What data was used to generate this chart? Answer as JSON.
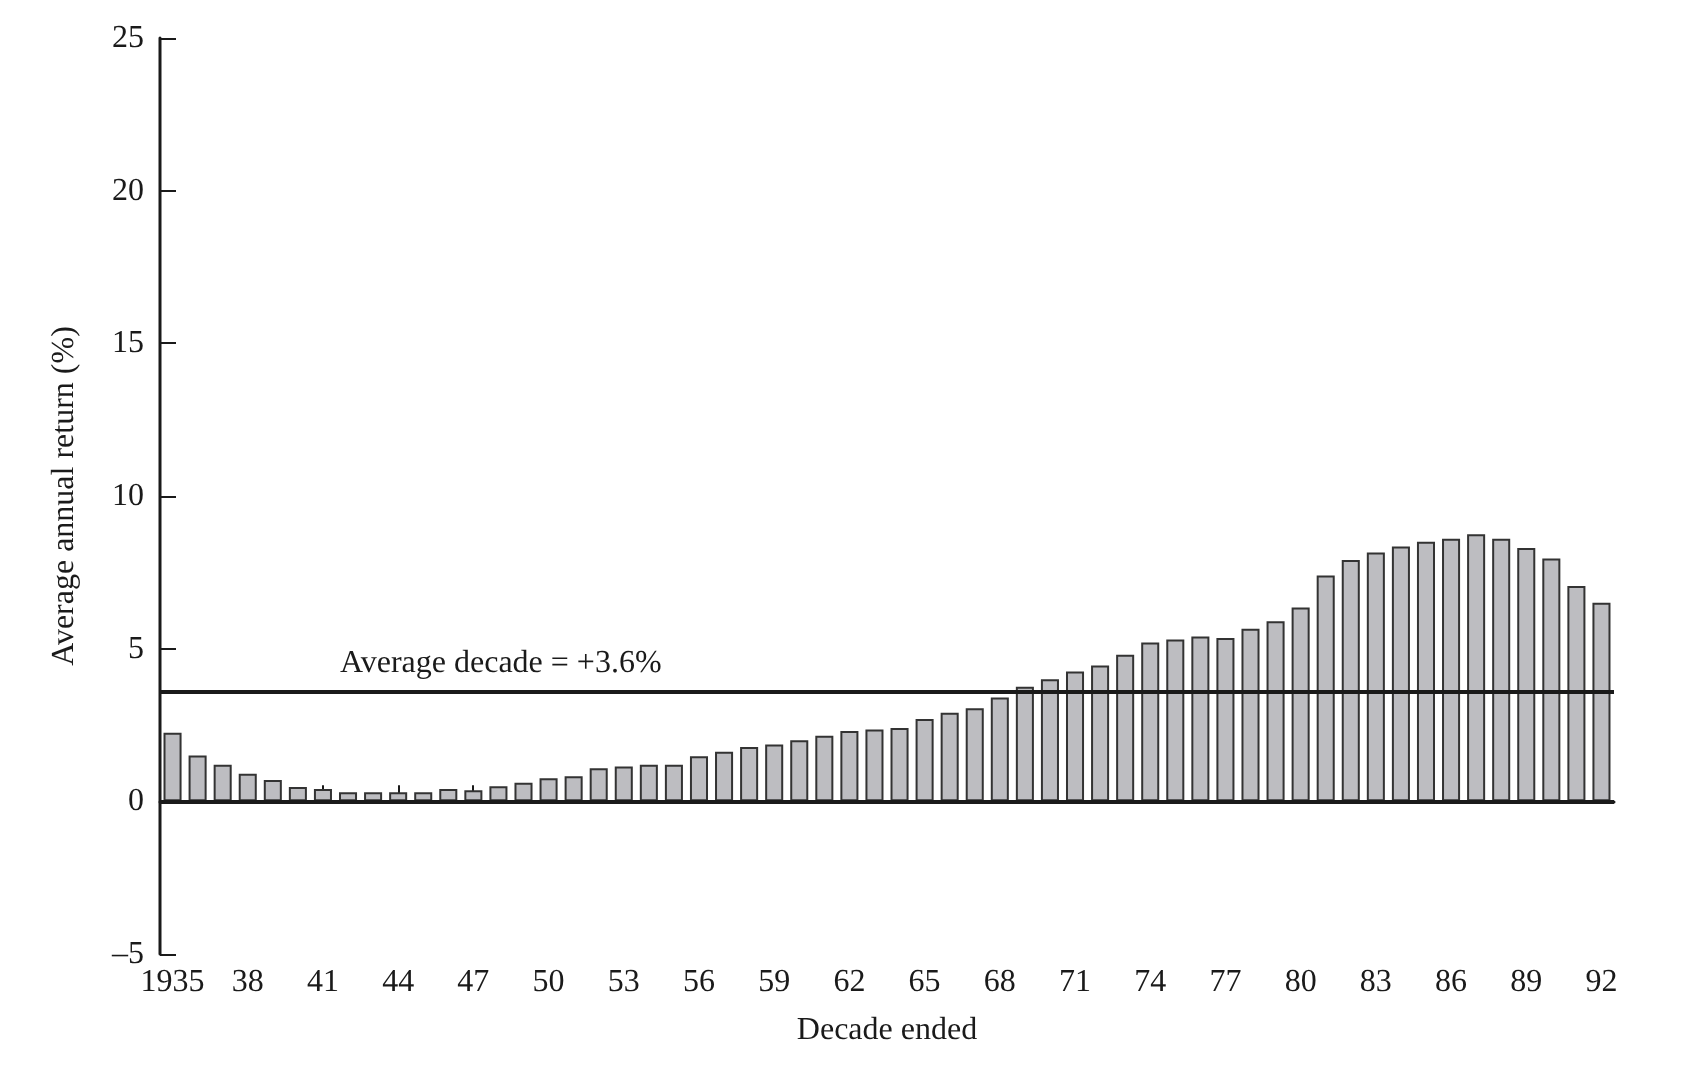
{
  "chart_data": {
    "type": "bar",
    "xlabel": "Decade ended",
    "ylabel": "Average annual return (%)",
    "categories": [
      "1935",
      null,
      null,
      "38",
      null,
      null,
      "41",
      null,
      null,
      "44",
      null,
      null,
      "47",
      null,
      null,
      "50",
      null,
      null,
      "53",
      null,
      null,
      "56",
      null,
      null,
      "59",
      null,
      null,
      "62",
      null,
      null,
      "65",
      null,
      null,
      "68",
      null,
      null,
      "71",
      null,
      null,
      "74",
      null,
      null,
      "77",
      null,
      null,
      "80",
      null,
      null,
      "83",
      null,
      null,
      "86",
      null,
      null,
      "89",
      null,
      null,
      "92"
    ],
    "values": [
      2.25,
      1.5,
      1.2,
      0.9,
      0.7,
      0.47,
      0.4,
      0.3,
      0.3,
      0.3,
      0.3,
      0.4,
      0.36,
      0.49,
      0.61,
      0.76,
      0.82,
      1.08,
      1.14,
      1.2,
      1.2,
      1.48,
      1.62,
      1.78,
      1.86,
      2.0,
      2.15,
      2.3,
      2.35,
      2.4,
      2.7,
      2.9,
      3.05,
      3.4,
      3.75,
      4.0,
      4.25,
      4.45,
      4.8,
      5.2,
      5.3,
      5.4,
      5.35,
      5.65,
      5.9,
      6.35,
      7.4,
      7.9,
      8.15,
      8.35,
      8.5,
      8.6,
      8.75,
      8.6,
      8.3,
      7.95,
      7.05,
      6.5
    ],
    "color": "#bdbdc1",
    "ylim": [
      -5,
      25
    ],
    "yticks": [
      {
        "value": -5,
        "label": "–5"
      },
      0,
      5,
      10,
      15,
      20,
      25
    ],
    "grid": false,
    "ref_lines": [
      {
        "axis": "y",
        "value": 0,
        "color": "#1a1a1a"
      },
      {
        "axis": "y",
        "value": 3.6,
        "label": "Average decade = +3.6%",
        "color": "#1a1a1a"
      }
    ]
  }
}
